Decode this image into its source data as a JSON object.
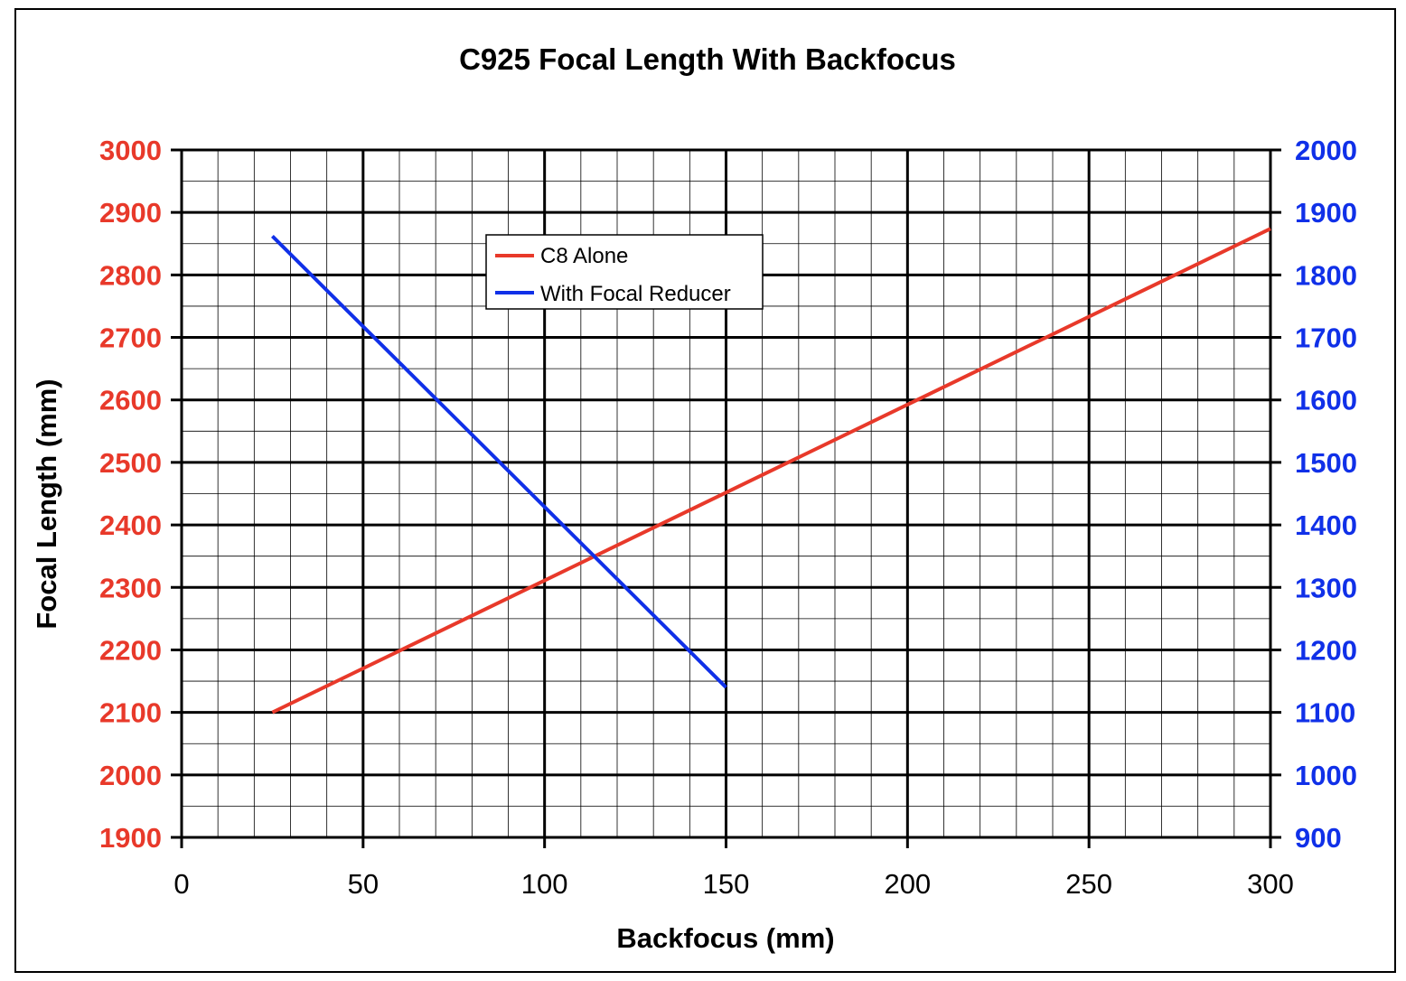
{
  "chart_data": {
    "type": "line",
    "title": "C925 Focal Length With Backfocus",
    "xlabel": "Backfocus (mm)",
    "ylabel": "Focal Length (mm)",
    "xlim": [
      0,
      300
    ],
    "ylim_left": [
      1900,
      3000
    ],
    "ylim_right": [
      900,
      2000
    ],
    "x_ticks": [
      "0",
      "50",
      "100",
      "150",
      "200",
      "250",
      "300"
    ],
    "y_left_ticks": [
      "3000",
      "2900",
      "2800",
      "2700",
      "2600",
      "2500",
      "2400",
      "2300",
      "2200",
      "2100",
      "2000",
      "1900"
    ],
    "y_right_ticks": [
      "2000",
      "1900",
      "1800",
      "1700",
      "1600",
      "1500",
      "1400",
      "1300",
      "1200",
      "1100",
      "1000",
      "900"
    ],
    "grid": true,
    "legend_position": "top-center",
    "series": [
      {
        "name": "C8 Alone",
        "axis": "left",
        "color": "#e8392a",
        "x": [
          25,
          300
        ],
        "y": [
          2100,
          2874
        ]
      },
      {
        "name": "With Focal Reducer",
        "axis": "right",
        "color": "#1030e8",
        "x": [
          25,
          150
        ],
        "y": [
          1862,
          1140
        ]
      }
    ],
    "colors": {
      "left_axis": "#e8392a",
      "right_axis": "#1030e8"
    }
  }
}
